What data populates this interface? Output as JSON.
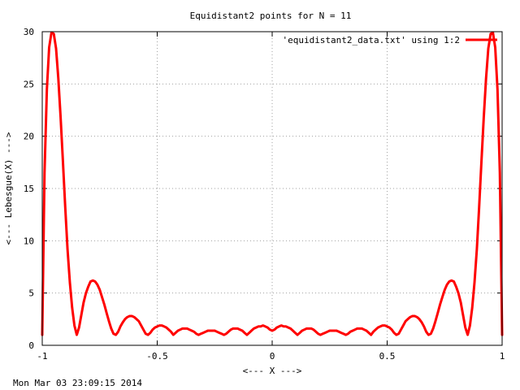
{
  "chart_data": {
    "type": "line",
    "title": "Equidistant2 points for N = 11",
    "xlabel": "<--- X --->",
    "ylabel": "<--- Lebesgue(X) --->",
    "xlim": [
      -1,
      1
    ],
    "ylim": [
      0,
      30
    ],
    "x_ticks": [
      -1,
      -0.5,
      0,
      0.5,
      1
    ],
    "x_tick_labels": [
      "-1",
      "-0.5",
      "0",
      "0.5",
      "1"
    ],
    "y_ticks": [
      0,
      5,
      10,
      15,
      20,
      25,
      30
    ],
    "y_tick_labels": [
      "0",
      "5",
      "10",
      "15",
      "20",
      "25",
      "30"
    ],
    "grid": true,
    "legend_position": "top-right",
    "series": [
      {
        "name": "'equidistant2_data.txt' using 1:2",
        "color": "#ff0000",
        "x": [
          -1.0,
          -0.99,
          -0.98,
          -0.97,
          -0.96,
          -0.95,
          -0.94,
          -0.93,
          -0.92,
          -0.91,
          -0.9,
          -0.89,
          -0.88,
          -0.87,
          -0.86,
          -0.85,
          -0.84,
          -0.83,
          -0.82,
          -0.81,
          -0.8,
          -0.79,
          -0.78,
          -0.77,
          -0.76,
          -0.75,
          -0.74,
          -0.73,
          -0.72,
          -0.71,
          -0.7,
          -0.69,
          -0.68,
          -0.67,
          -0.66,
          -0.65,
          -0.64,
          -0.63,
          -0.62,
          -0.61,
          -0.6,
          -0.59,
          -0.58,
          -0.57,
          -0.56,
          -0.55,
          -0.54,
          -0.53,
          -0.52,
          -0.51,
          -0.5,
          -0.49,
          -0.48,
          -0.47,
          -0.46,
          -0.45,
          -0.44,
          -0.43,
          -0.42,
          -0.41,
          -0.4,
          -0.39,
          -0.38,
          -0.37,
          -0.36,
          -0.35,
          -0.34,
          -0.33,
          -0.32,
          -0.31,
          -0.3,
          -0.29,
          -0.28,
          -0.27,
          -0.26,
          -0.25,
          -0.24,
          -0.23,
          -0.22,
          -0.21,
          -0.2,
          -0.19,
          -0.18,
          -0.17,
          -0.16,
          -0.15,
          -0.14,
          -0.13,
          -0.12,
          -0.11,
          -0.1,
          -0.09,
          -0.08,
          -0.07,
          -0.06,
          -0.05,
          -0.04,
          -0.03,
          -0.02,
          -0.01,
          0.0,
          0.01,
          0.02,
          0.03,
          0.04,
          0.05,
          0.06,
          0.07,
          0.08,
          0.09,
          0.1,
          0.11,
          0.12,
          0.13,
          0.14,
          0.15,
          0.16,
          0.17,
          0.18,
          0.19,
          0.2,
          0.21,
          0.22,
          0.23,
          0.24,
          0.25,
          0.26,
          0.27,
          0.28,
          0.29,
          0.3,
          0.31,
          0.32,
          0.33,
          0.34,
          0.35,
          0.36,
          0.37,
          0.38,
          0.39,
          0.4,
          0.41,
          0.42,
          0.43,
          0.44,
          0.45,
          0.46,
          0.47,
          0.48,
          0.49,
          0.5,
          0.51,
          0.52,
          0.53,
          0.54,
          0.55,
          0.56,
          0.57,
          0.58,
          0.59,
          0.6,
          0.61,
          0.62,
          0.63,
          0.64,
          0.65,
          0.66,
          0.67,
          0.68,
          0.69,
          0.7,
          0.71,
          0.72,
          0.73,
          0.74,
          0.75,
          0.76,
          0.77,
          0.78,
          0.79,
          0.8,
          0.81,
          0.82,
          0.83,
          0.84,
          0.85,
          0.86,
          0.87,
          0.88,
          0.89,
          0.9,
          0.91,
          0.92,
          0.93,
          0.94,
          0.95,
          0.96,
          0.97,
          0.98,
          0.99,
          1.0
        ],
        "y": [
          1.0,
          16.5,
          24.5,
          28.5,
          29.9,
          29.8,
          28.4,
          25.5,
          21.8,
          17.5,
          13.2,
          9.2,
          6.0,
          3.6,
          1.9,
          1.0,
          1.7,
          2.9,
          4.1,
          5.0,
          5.6,
          6.1,
          6.2,
          6.1,
          5.8,
          5.3,
          4.6,
          3.9,
          3.1,
          2.3,
          1.6,
          1.1,
          1.0,
          1.3,
          1.8,
          2.2,
          2.5,
          2.7,
          2.8,
          2.8,
          2.7,
          2.5,
          2.3,
          1.9,
          1.5,
          1.1,
          1.0,
          1.2,
          1.5,
          1.7,
          1.8,
          1.9,
          1.9,
          1.8,
          1.7,
          1.5,
          1.3,
          1.0,
          1.2,
          1.4,
          1.5,
          1.6,
          1.6,
          1.6,
          1.5,
          1.4,
          1.3,
          1.1,
          1.0,
          1.1,
          1.2,
          1.3,
          1.4,
          1.4,
          1.4,
          1.4,
          1.3,
          1.2,
          1.1,
          1.0,
          1.1,
          1.3,
          1.5,
          1.6,
          1.6,
          1.6,
          1.5,
          1.4,
          1.2,
          1.0,
          1.2,
          1.4,
          1.6,
          1.7,
          1.8,
          1.8,
          1.9,
          1.8,
          1.7,
          1.5,
          1.4,
          1.5,
          1.7,
          1.8,
          1.9,
          1.8,
          1.8,
          1.7,
          1.6,
          1.4,
          1.2,
          1.0,
          1.2,
          1.4,
          1.5,
          1.6,
          1.6,
          1.6,
          1.5,
          1.3,
          1.1,
          1.0,
          1.1,
          1.2,
          1.3,
          1.4,
          1.4,
          1.4,
          1.4,
          1.3,
          1.2,
          1.1,
          1.0,
          1.1,
          1.3,
          1.4,
          1.5,
          1.6,
          1.6,
          1.6,
          1.5,
          1.4,
          1.2,
          1.0,
          1.3,
          1.5,
          1.7,
          1.8,
          1.9,
          1.9,
          1.8,
          1.7,
          1.5,
          1.2,
          1.0,
          1.1,
          1.5,
          1.9,
          2.3,
          2.5,
          2.7,
          2.8,
          2.8,
          2.7,
          2.5,
          2.2,
          1.8,
          1.3,
          1.0,
          1.1,
          1.6,
          2.3,
          3.1,
          3.9,
          4.6,
          5.3,
          5.8,
          6.1,
          6.2,
          6.1,
          5.6,
          5.0,
          4.1,
          2.9,
          1.7,
          1.0,
          1.9,
          3.6,
          6.0,
          9.2,
          13.2,
          17.5,
          21.8,
          25.5,
          28.4,
          29.8,
          29.9,
          28.5,
          24.5,
          16.5,
          1.0
        ]
      }
    ]
  },
  "footer": {
    "timestamp": "Mon Mar 03 23:09:15 2014"
  }
}
